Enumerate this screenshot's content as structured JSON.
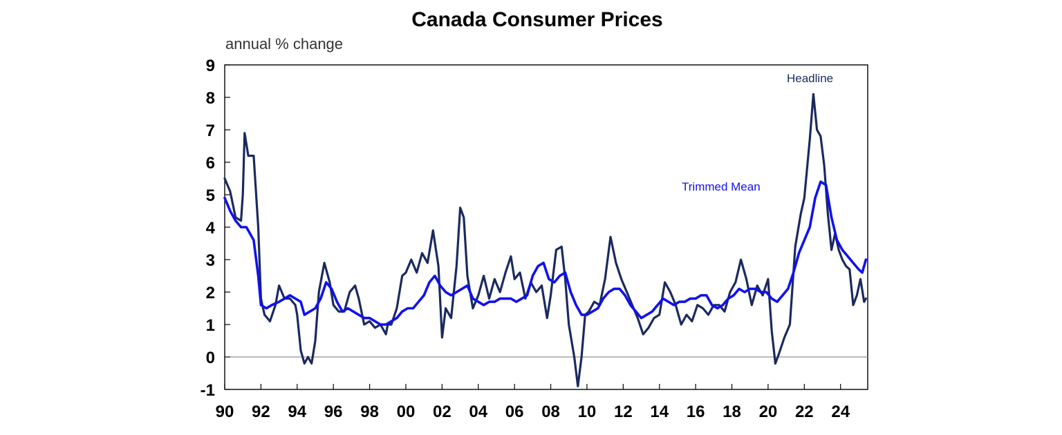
{
  "chart_data": {
    "type": "line",
    "title": "Canada Consumer Prices",
    "subtitle": "annual % change",
    "xlabel": "",
    "ylabel": "",
    "ylim": [
      -1,
      9
    ],
    "xlim": [
      1990,
      2025.5
    ],
    "yticks": [
      "9",
      "8",
      "7",
      "6",
      "5",
      "4",
      "3",
      "2",
      "1",
      "0",
      "-1"
    ],
    "xticks": [
      "90",
      "92",
      "94",
      "96",
      "98",
      "00",
      "02",
      "04",
      "06",
      "08",
      "10",
      "12",
      "14",
      "16",
      "18",
      "20",
      "22",
      "24"
    ],
    "grid": false,
    "zero_line": true,
    "series": [
      {
        "name": "Headline",
        "color": "#1a2a5e",
        "x": [
          1990.0,
          1990.3,
          1990.6,
          1990.9,
          1991.0,
          1991.1,
          1991.3,
          1991.6,
          1991.85,
          1992.0,
          1992.2,
          1992.5,
          1992.8,
          1993.0,
          1993.3,
          1993.6,
          1993.9,
          1994.0,
          1994.2,
          1994.4,
          1994.6,
          1994.8,
          1995.0,
          1995.2,
          1995.5,
          1995.8,
          1996.0,
          1996.3,
          1996.6,
          1996.9,
          1997.2,
          1997.4,
          1997.7,
          1998.0,
          1998.3,
          1998.6,
          1998.9,
          1999.0,
          1999.2,
          1999.5,
          1999.8,
          2000.0,
          2000.3,
          2000.6,
          2000.9,
          2001.2,
          2001.5,
          2001.8,
          2002.0,
          2002.2,
          2002.5,
          2002.8,
          2003.0,
          2003.2,
          2003.4,
          2003.7,
          2004.0,
          2004.3,
          2004.6,
          2004.9,
          2005.2,
          2005.5,
          2005.8,
          2006.0,
          2006.3,
          2006.6,
          2006.9,
          2007.2,
          2007.5,
          2007.8,
          2008.0,
          2008.3,
          2008.6,
          2008.8,
          2009.0,
          2009.3,
          2009.5,
          2009.7,
          2009.9,
          2010.1,
          2010.4,
          2010.7,
          2011.0,
          2011.3,
          2011.6,
          2011.9,
          2012.2,
          2012.5,
          2012.8,
          2013.1,
          2013.4,
          2013.7,
          2014.0,
          2014.3,
          2014.6,
          2014.9,
          2015.2,
          2015.5,
          2015.8,
          2016.1,
          2016.4,
          2016.7,
          2017.0,
          2017.3,
          2017.6,
          2017.9,
          2018.2,
          2018.5,
          2018.8,
          2019.1,
          2019.4,
          2019.7,
          2020.0,
          2020.2,
          2020.4,
          2020.6,
          2020.9,
          2021.2,
          2021.5,
          2021.8,
          2022.0,
          2022.3,
          2022.5,
          2022.7,
          2022.9,
          2023.1,
          2023.3,
          2023.5,
          2023.7,
          2023.9,
          2024.1,
          2024.3,
          2024.5,
          2024.7,
          2024.9,
          2025.1,
          2025.3,
          2025.4
        ],
        "y": [
          5.5,
          5.1,
          4.3,
          4.2,
          5.0,
          6.9,
          6.2,
          6.2,
          4.0,
          1.8,
          1.3,
          1.1,
          1.6,
          2.2,
          1.8,
          1.8,
          1.6,
          1.3,
          0.2,
          -0.2,
          0.0,
          -0.2,
          0.5,
          2.0,
          2.9,
          2.3,
          1.6,
          1.4,
          1.4,
          2.0,
          2.2,
          1.8,
          1.0,
          1.1,
          0.9,
          1.0,
          0.7,
          1.0,
          1.0,
          1.5,
          2.5,
          2.6,
          3.0,
          2.6,
          3.2,
          2.9,
          3.9,
          2.8,
          0.6,
          1.5,
          1.2,
          2.8,
          4.6,
          4.3,
          2.5,
          1.5,
          1.9,
          2.5,
          1.8,
          2.4,
          2.0,
          2.6,
          3.1,
          2.4,
          2.6,
          1.8,
          2.3,
          2.0,
          2.2,
          1.2,
          1.9,
          3.3,
          3.4,
          2.4,
          1.0,
          0.0,
          -0.9,
          0.0,
          1.3,
          1.4,
          1.7,
          1.6,
          2.4,
          3.7,
          2.9,
          2.4,
          2.0,
          1.6,
          1.2,
          0.7,
          0.9,
          1.2,
          1.3,
          2.3,
          2.0,
          1.6,
          1.0,
          1.3,
          1.1,
          1.6,
          1.5,
          1.3,
          1.6,
          1.6,
          1.4,
          2.0,
          2.3,
          3.0,
          2.4,
          1.6,
          2.2,
          1.9,
          2.4,
          0.8,
          -0.2,
          0.1,
          0.6,
          1.0,
          3.4,
          4.4,
          4.9,
          6.7,
          8.1,
          7.0,
          6.8,
          5.9,
          4.4,
          3.3,
          3.8,
          3.3,
          3.0,
          2.8,
          2.7,
          1.6,
          1.9,
          2.4,
          1.7,
          1.8
        ],
        "label": "Headline"
      },
      {
        "name": "Trimmed Mean",
        "color": "#1010f0",
        "x": [
          1990.0,
          1990.3,
          1990.6,
          1990.9,
          1991.2,
          1991.6,
          1991.85,
          1992.0,
          1992.3,
          1992.6,
          1993.0,
          1993.3,
          1993.6,
          1993.9,
          1994.2,
          1994.4,
          1994.7,
          1995.0,
          1995.3,
          1995.6,
          1995.9,
          1996.2,
          1996.5,
          1996.8,
          1997.1,
          1997.4,
          1997.7,
          1998.0,
          1998.3,
          1998.6,
          1998.9,
          1999.2,
          1999.5,
          1999.8,
          2000.1,
          2000.4,
          2000.7,
          2001.0,
          2001.3,
          2001.6,
          2001.9,
          2002.2,
          2002.5,
          2002.8,
          2003.1,
          2003.4,
          2003.7,
          2004.0,
          2004.3,
          2004.6,
          2004.9,
          2005.2,
          2005.5,
          2005.8,
          2006.1,
          2006.4,
          2006.7,
          2007.0,
          2007.3,
          2007.6,
          2007.9,
          2008.2,
          2008.5,
          2008.8,
          2009.1,
          2009.4,
          2009.7,
          2010.0,
          2010.3,
          2010.6,
          2010.9,
          2011.2,
          2011.5,
          2011.8,
          2012.1,
          2012.4,
          2012.7,
          2013.0,
          2013.3,
          2013.6,
          2013.9,
          2014.2,
          2014.5,
          2014.8,
          2015.1,
          2015.4,
          2015.7,
          2016.0,
          2016.3,
          2016.6,
          2016.9,
          2017.2,
          2017.5,
          2017.8,
          2018.1,
          2018.4,
          2018.7,
          2019.0,
          2019.3,
          2019.6,
          2019.9,
          2020.2,
          2020.5,
          2020.8,
          2021.1,
          2021.4,
          2021.7,
          2022.0,
          2022.3,
          2022.6,
          2022.9,
          2023.2,
          2023.5,
          2023.8,
          2024.1,
          2024.4,
          2024.7,
          2025.0,
          2025.2,
          2025.4
        ],
        "y": [
          4.9,
          4.5,
          4.2,
          4.0,
          4.0,
          3.6,
          2.5,
          1.6,
          1.5,
          1.6,
          1.7,
          1.8,
          1.9,
          1.8,
          1.7,
          1.3,
          1.4,
          1.5,
          1.8,
          2.3,
          2.1,
          1.7,
          1.4,
          1.5,
          1.4,
          1.3,
          1.2,
          1.2,
          1.1,
          1.0,
          1.0,
          1.1,
          1.2,
          1.4,
          1.5,
          1.5,
          1.7,
          1.9,
          2.3,
          2.5,
          2.2,
          2.0,
          1.9,
          2.0,
          2.1,
          2.2,
          1.8,
          1.7,
          1.6,
          1.7,
          1.7,
          1.8,
          1.8,
          1.8,
          1.7,
          1.8,
          1.9,
          2.5,
          2.8,
          2.9,
          2.4,
          2.3,
          2.5,
          2.6,
          2.0,
          1.6,
          1.3,
          1.3,
          1.4,
          1.5,
          1.8,
          2.0,
          2.1,
          2.1,
          1.9,
          1.6,
          1.4,
          1.2,
          1.3,
          1.4,
          1.6,
          1.8,
          1.7,
          1.6,
          1.7,
          1.7,
          1.8,
          1.8,
          1.9,
          1.9,
          1.6,
          1.5,
          1.6,
          1.8,
          1.9,
          2.1,
          2.0,
          2.1,
          2.1,
          2.0,
          2.0,
          1.8,
          1.7,
          1.9,
          2.1,
          2.6,
          3.2,
          3.6,
          4.0,
          4.9,
          5.4,
          5.3,
          4.3,
          3.6,
          3.3,
          3.1,
          2.9,
          2.7,
          2.6,
          3.0
        ],
        "label": "Trimmed Mean"
      }
    ]
  }
}
